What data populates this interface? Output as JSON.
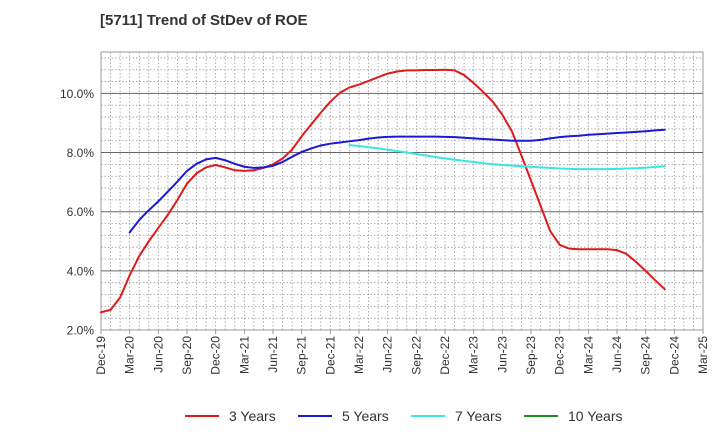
{
  "chart_data": {
    "type": "line",
    "title": "[5711]  Trend of StDev of ROE",
    "ylim": [
      2.0,
      11.4
    ],
    "yticks": [
      {
        "value": 2.0,
        "label": "2.0%"
      },
      {
        "value": 4.0,
        "label": "4.0%"
      },
      {
        "value": 6.0,
        "label": "6.0%"
      },
      {
        "value": 8.0,
        "label": "8.0%"
      },
      {
        "value": 10.0,
        "label": "10.0%"
      }
    ],
    "xticks": [
      "Dec-19",
      "Mar-20",
      "Jun-20",
      "Sep-20",
      "Dec-20",
      "Mar-21",
      "Jun-21",
      "Sep-21",
      "Dec-21",
      "Mar-22",
      "Jun-22",
      "Sep-22",
      "Dec-22",
      "Mar-23",
      "Jun-23",
      "Sep-23",
      "Dec-23",
      "Mar-24",
      "Jun-24",
      "Sep-24",
      "Dec-24",
      "Mar-25"
    ],
    "grid": true,
    "legend_position": "bottom",
    "series": [
      {
        "name": "3 Years",
        "color": "#dd1b1b",
        "values": [
          2.6,
          2.68,
          3.1,
          3.85,
          4.5,
          5.0,
          5.45,
          5.9,
          6.4,
          6.95,
          7.3,
          7.5,
          7.58,
          7.5,
          7.4,
          7.38,
          7.4,
          7.48,
          7.6,
          7.8,
          8.1,
          8.55,
          8.95,
          9.35,
          9.72,
          10.02,
          10.2,
          10.3,
          10.42,
          10.55,
          10.67,
          10.74,
          10.78,
          10.78,
          10.79,
          10.79,
          10.8,
          10.78,
          10.62,
          10.35,
          10.05,
          9.72,
          9.28,
          8.72,
          7.9,
          7.05,
          6.2,
          5.35,
          4.88,
          4.75,
          4.73,
          4.73,
          4.73,
          4.73,
          4.7,
          4.57,
          4.3,
          4.0,
          3.68,
          3.38
        ]
      },
      {
        "name": "5 Years",
        "color": "#1a1ad4",
        "values": [
          null,
          null,
          null,
          5.3,
          5.72,
          6.05,
          6.35,
          6.68,
          7.02,
          7.38,
          7.62,
          7.77,
          7.82,
          7.74,
          7.62,
          7.52,
          7.48,
          7.5,
          7.55,
          7.68,
          7.86,
          8.02,
          8.14,
          8.24,
          8.3,
          8.34,
          8.38,
          8.42,
          8.47,
          8.51,
          8.53,
          8.54,
          8.54,
          8.54,
          8.54,
          8.54,
          8.53,
          8.52,
          8.5,
          8.48,
          8.46,
          8.44,
          8.42,
          8.4,
          8.4,
          8.4,
          8.43,
          8.48,
          8.52,
          8.55,
          8.57,
          8.6,
          8.62,
          8.64,
          8.66,
          8.68,
          8.7,
          8.72,
          8.75,
          8.77
        ]
      },
      {
        "name": "7 Years",
        "color": "#38e6e6",
        "values": [
          null,
          null,
          null,
          null,
          null,
          null,
          null,
          null,
          null,
          null,
          null,
          null,
          null,
          null,
          null,
          null,
          null,
          null,
          null,
          null,
          null,
          null,
          null,
          null,
          null,
          null,
          8.25,
          8.22,
          8.18,
          8.14,
          8.1,
          8.05,
          8.0,
          7.95,
          7.9,
          7.85,
          7.8,
          7.76,
          7.72,
          7.68,
          7.64,
          7.61,
          7.58,
          7.56,
          7.54,
          7.52,
          7.5,
          7.48,
          7.46,
          7.45,
          7.44,
          7.44,
          7.44,
          7.44,
          7.45,
          7.46,
          7.47,
          7.49,
          7.51,
          7.54
        ]
      },
      {
        "name": "10 Years",
        "color": "#1f8c1f",
        "values": []
      }
    ]
  }
}
